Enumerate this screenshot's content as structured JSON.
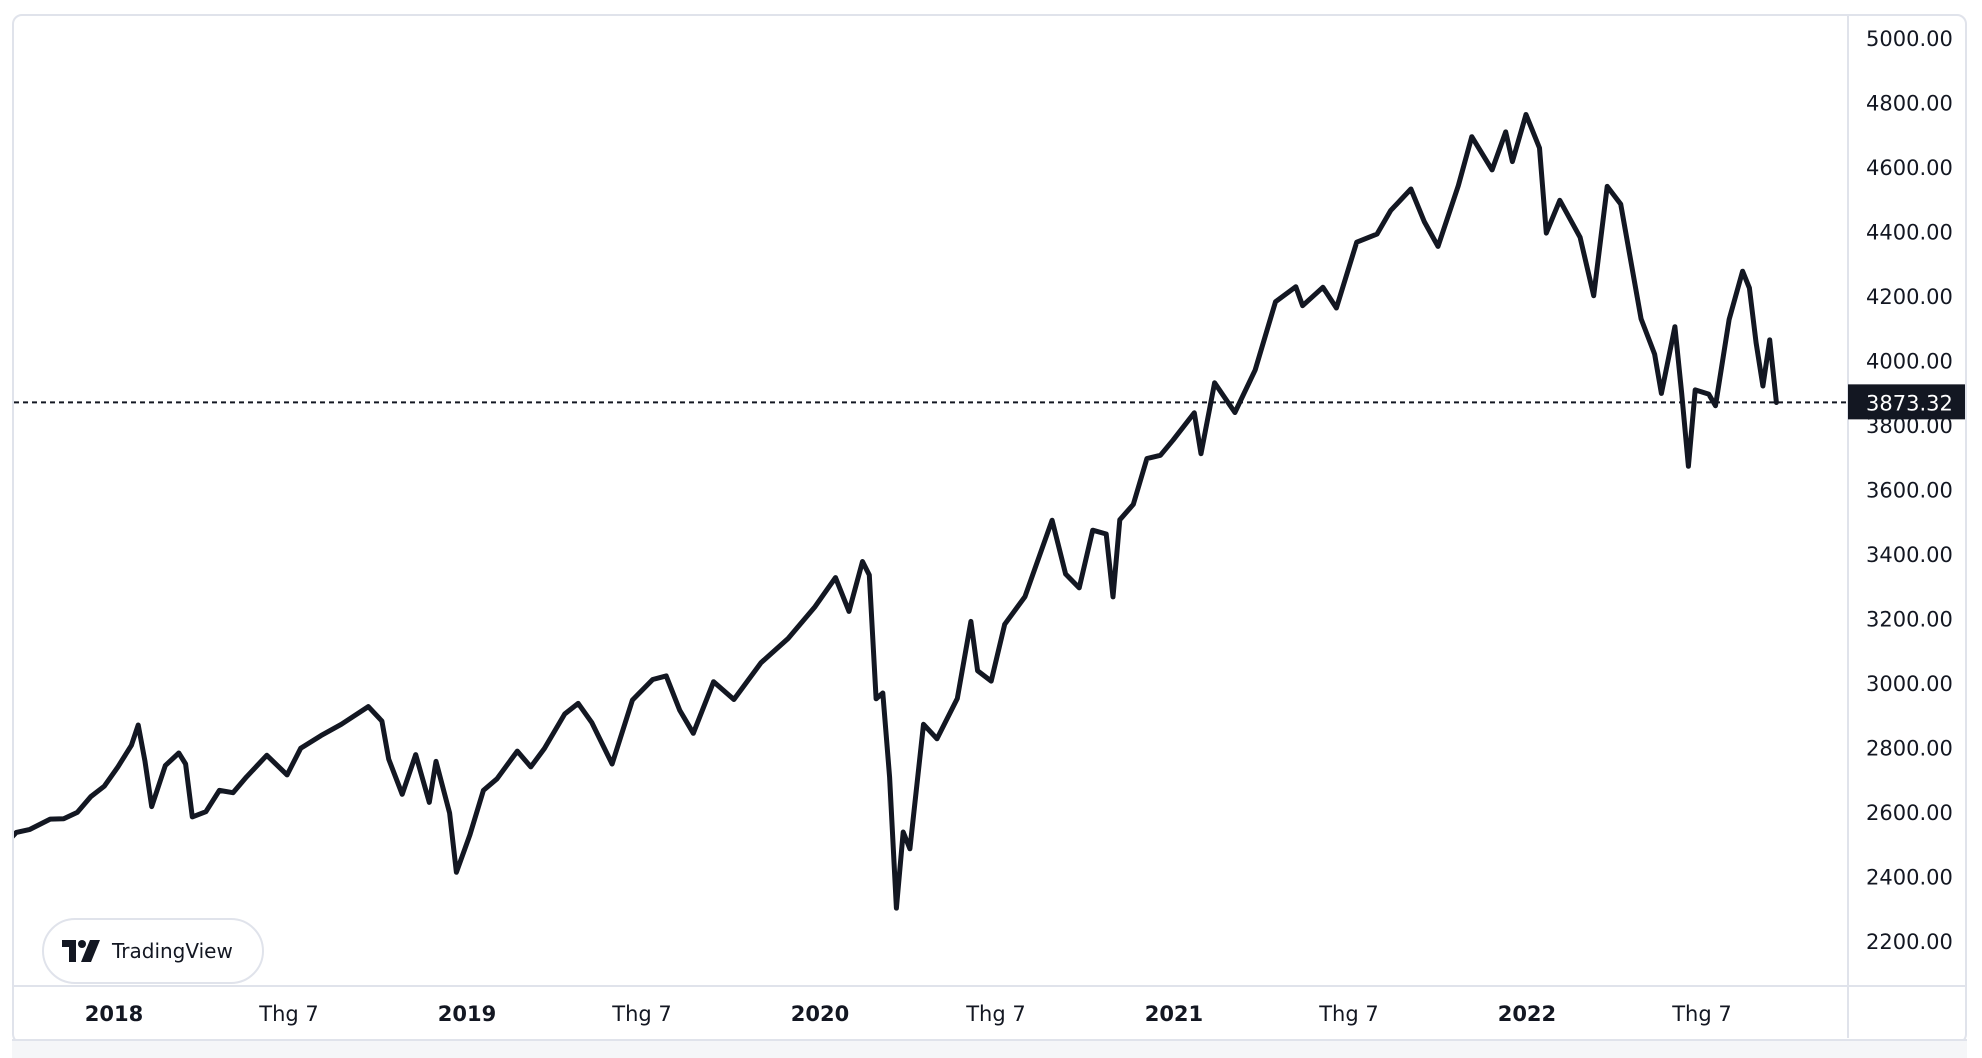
{
  "brand": {
    "logo_text": "TradingView"
  },
  "colors": {
    "line": "#131722",
    "axis_border": "#e0e3eb",
    "price_label_bg": "#131722",
    "price_label_text": "#ffffff"
  },
  "chart_data": {
    "type": "line",
    "title": "",
    "xlabel": "",
    "ylabel": "",
    "ylim": [
      2100,
      5050
    ],
    "xlim": [
      "2017-09-08",
      "2022-11-15"
    ],
    "grid": false,
    "last_price": 3873.32,
    "last_price_label": "3873.32",
    "y_ticks": [
      "5000.00",
      "4800.00",
      "4600.00",
      "4400.00",
      "4200.00",
      "4000.00",
      "3800.00",
      "3600.00",
      "3400.00",
      "3200.00",
      "3000.00",
      "2800.00",
      "2600.00",
      "2400.00",
      "2200.00"
    ],
    "x_ticks": [
      {
        "label": "2018",
        "date": "2018-01-01",
        "year": true
      },
      {
        "label": "Thg 7",
        "date": "2018-07-01",
        "year": false
      },
      {
        "label": "2019",
        "date": "2019-01-01",
        "year": true
      },
      {
        "label": "Thg 7",
        "date": "2019-07-01",
        "year": false
      },
      {
        "label": "2020",
        "date": "2020-01-01",
        "year": true
      },
      {
        "label": "Thg 7",
        "date": "2020-07-01",
        "year": false
      },
      {
        "label": "2021",
        "date": "2021-01-01",
        "year": true
      },
      {
        "label": "Thg 7",
        "date": "2021-07-01",
        "year": false
      },
      {
        "label": "2022",
        "date": "2022-01-01",
        "year": true
      },
      {
        "label": "Thg 7",
        "date": "2022-07-01",
        "year": false
      }
    ],
    "points": [
      [
        "2017-09-08",
        2495
      ],
      [
        "2017-09-22",
        2540
      ],
      [
        "2017-10-06",
        2549
      ],
      [
        "2017-10-27",
        2581
      ],
      [
        "2017-11-10",
        2582
      ],
      [
        "2017-11-24",
        2602
      ],
      [
        "2017-12-08",
        2651
      ],
      [
        "2017-12-22",
        2683
      ],
      [
        "2018-01-05",
        2743
      ],
      [
        "2018-01-19",
        2810
      ],
      [
        "2018-01-26",
        2873
      ],
      [
        "2018-02-02",
        2762
      ],
      [
        "2018-02-09",
        2620
      ],
      [
        "2018-02-23",
        2747
      ],
      [
        "2018-03-09",
        2786
      ],
      [
        "2018-03-16",
        2752
      ],
      [
        "2018-03-23",
        2588
      ],
      [
        "2018-04-06",
        2604
      ],
      [
        "2018-04-20",
        2670
      ],
      [
        "2018-05-04",
        2663
      ],
      [
        "2018-05-18",
        2712
      ],
      [
        "2018-06-08",
        2779
      ],
      [
        "2018-06-29",
        2718
      ],
      [
        "2018-07-13",
        2801
      ],
      [
        "2018-08-03",
        2840
      ],
      [
        "2018-08-24",
        2875
      ],
      [
        "2018-09-21",
        2930
      ],
      [
        "2018-10-05",
        2885
      ],
      [
        "2018-10-12",
        2767
      ],
      [
        "2018-10-26",
        2658
      ],
      [
        "2018-11-09",
        2781
      ],
      [
        "2018-11-23",
        2633
      ],
      [
        "2018-11-30",
        2760
      ],
      [
        "2018-12-14",
        2600
      ],
      [
        "2018-12-21",
        2416
      ],
      [
        "2019-01-04",
        2532
      ],
      [
        "2019-01-18",
        2670
      ],
      [
        "2019-02-01",
        2706
      ],
      [
        "2019-02-22",
        2792
      ],
      [
        "2019-03-08",
        2743
      ],
      [
        "2019-03-22",
        2800
      ],
      [
        "2019-04-12",
        2907
      ],
      [
        "2019-04-26",
        2940
      ],
      [
        "2019-05-10",
        2881
      ],
      [
        "2019-05-31",
        2752
      ],
      [
        "2019-06-21",
        2950
      ],
      [
        "2019-07-12",
        3014
      ],
      [
        "2019-07-26",
        3025
      ],
      [
        "2019-08-09",
        2918
      ],
      [
        "2019-08-23",
        2847
      ],
      [
        "2019-09-13",
        3007
      ],
      [
        "2019-10-04",
        2952
      ],
      [
        "2019-11-01",
        3066
      ],
      [
        "2019-11-29",
        3141
      ],
      [
        "2019-12-27",
        3240
      ],
      [
        "2020-01-17",
        3330
      ],
      [
        "2020-01-31",
        3225
      ],
      [
        "2020-02-14",
        3380
      ],
      [
        "2020-02-21",
        3338
      ],
      [
        "2020-02-28",
        2954
      ],
      [
        "2020-03-06",
        2972
      ],
      [
        "2020-03-13",
        2711
      ],
      [
        "2020-03-20",
        2305
      ],
      [
        "2020-03-27",
        2541
      ],
      [
        "2020-04-03",
        2489
      ],
      [
        "2020-04-17",
        2875
      ],
      [
        "2020-05-01",
        2830
      ],
      [
        "2020-05-22",
        2955
      ],
      [
        "2020-06-05",
        3194
      ],
      [
        "2020-06-12",
        3041
      ],
      [
        "2020-06-26",
        3009
      ],
      [
        "2020-07-10",
        3185
      ],
      [
        "2020-07-31",
        3271
      ],
      [
        "2020-08-28",
        3508
      ],
      [
        "2020-09-11",
        3341
      ],
      [
        "2020-09-25",
        3298
      ],
      [
        "2020-10-09",
        3477
      ],
      [
        "2020-10-23",
        3465
      ],
      [
        "2020-10-30",
        3270
      ],
      [
        "2020-11-06",
        3509
      ],
      [
        "2020-11-20",
        3557
      ],
      [
        "2020-12-04",
        3699
      ],
      [
        "2020-12-18",
        3709
      ],
      [
        "2020-12-31",
        3756
      ],
      [
        "2021-01-22",
        3841
      ],
      [
        "2021-01-29",
        3714
      ],
      [
        "2021-02-12",
        3934
      ],
      [
        "2021-03-05",
        3842
      ],
      [
        "2021-03-26",
        3974
      ],
      [
        "2021-04-16",
        4185
      ],
      [
        "2021-05-07",
        4232
      ],
      [
        "2021-05-14",
        4173
      ],
      [
        "2021-06-04",
        4230
      ],
      [
        "2021-06-18",
        4166
      ],
      [
        "2021-07-09",
        4370
      ],
      [
        "2021-07-30",
        4395
      ],
      [
        "2021-08-13",
        4468
      ],
      [
        "2021-09-03",
        4535
      ],
      [
        "2021-09-17",
        4433
      ],
      [
        "2021-10-01",
        4357
      ],
      [
        "2021-10-22",
        4545
      ],
      [
        "2021-11-05",
        4697
      ],
      [
        "2021-11-26",
        4594
      ],
      [
        "2021-12-10",
        4712
      ],
      [
        "2021-12-17",
        4620
      ],
      [
        "2021-12-31",
        4766
      ],
      [
        "2022-01-14",
        4662
      ],
      [
        "2022-01-21",
        4398
      ],
      [
        "2022-02-04",
        4500
      ],
      [
        "2022-02-25",
        4385
      ],
      [
        "2022-03-11",
        4204
      ],
      [
        "2022-03-25",
        4543
      ],
      [
        "2022-04-08",
        4488
      ],
      [
        "2022-04-29",
        4132
      ],
      [
        "2022-05-13",
        4023
      ],
      [
        "2022-05-20",
        3901
      ],
      [
        "2022-06-03",
        4108
      ],
      [
        "2022-06-10",
        3901
      ],
      [
        "2022-06-17",
        3675
      ],
      [
        "2022-06-24",
        3912
      ],
      [
        "2022-07-08",
        3899
      ],
      [
        "2022-07-15",
        3863
      ],
      [
        "2022-07-29",
        4130
      ],
      [
        "2022-08-12",
        4280
      ],
      [
        "2022-08-19",
        4228
      ],
      [
        "2022-08-26",
        4058
      ],
      [
        "2022-09-02",
        3924
      ],
      [
        "2022-09-09",
        4067
      ],
      [
        "2022-09-16",
        3873
      ]
    ]
  }
}
